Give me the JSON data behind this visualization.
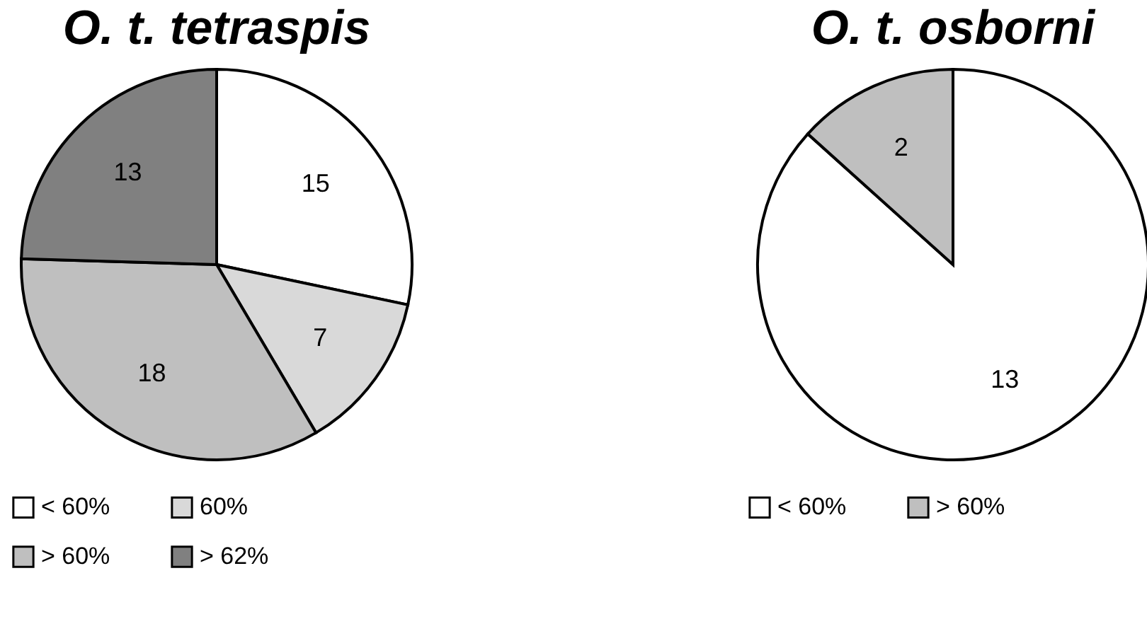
{
  "chart_data": [
    {
      "type": "pie",
      "title": "O. t. tetraspis",
      "categories": [
        "< 60%",
        "60%",
        "> 60%",
        "> 62%"
      ],
      "values": [
        15,
        7,
        18,
        13
      ],
      "colors": [
        "#ffffff",
        "#d9d9d9",
        "#bfbfbf",
        "#808080"
      ],
      "data_labels": true,
      "legend": "bottom"
    },
    {
      "type": "pie",
      "title": "O. t. osborni",
      "categories": [
        "< 60%",
        "> 60%"
      ],
      "values": [
        13,
        2
      ],
      "colors": [
        "#ffffff",
        "#bfbfbf"
      ],
      "data_labels": true,
      "legend": "bottom"
    }
  ]
}
